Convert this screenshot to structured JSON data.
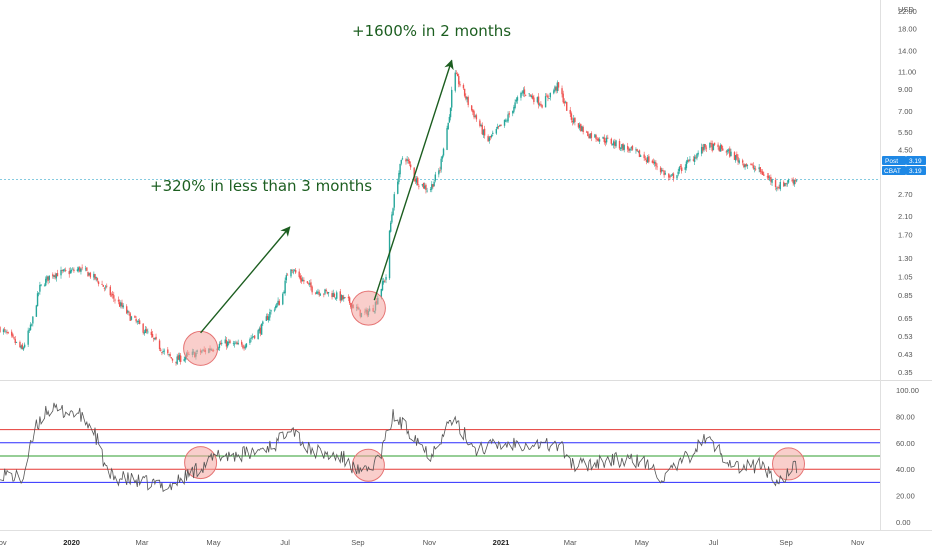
{
  "colors": {
    "up": "#26a69a",
    "down": "#ef5350",
    "annotation": "#1c5e20",
    "price_line": "#5fbbd6",
    "badge": "#1e88e5",
    "rsi_line": "#555555",
    "level_red": "#e53935",
    "level_blue": "#2c2cff",
    "level_green": "#2e9e2e",
    "circle_fill": "#f4a5a0",
    "circle_stroke": "#e57373"
  },
  "chart_data": [
    {
      "type": "candlestick",
      "title": "",
      "currency": "USD",
      "scale": "log",
      "ylim": [
        0.32,
        25
      ],
      "yticks": [
        "22.00",
        "18.00",
        "14.00",
        "11.00",
        "9.00",
        "7.00",
        "5.50",
        "4.50",
        "3.50",
        "2.70",
        "2.10",
        "1.70",
        "1.30",
        "1.05",
        "0.85",
        "0.65",
        "0.53",
        "0.43",
        "0.35"
      ],
      "xticks": [
        "Nov",
        "2020",
        "Mar",
        "May",
        "Jul",
        "Sep",
        "Nov",
        "2021",
        "Mar",
        "May",
        "Jul",
        "Sep",
        "Nov"
      ],
      "x_range": [
        "2019-11-01",
        "2021-11-20"
      ],
      "last_price": {
        "post_label": "Post",
        "post_value": "3.19",
        "ticker": "CBAT",
        "value": "3.19"
      },
      "price_path": [
        [
          "2019-11-01",
          0.58
        ],
        [
          "2019-11-10",
          0.52
        ],
        [
          "2019-11-20",
          0.45
        ],
        [
          "2019-11-28",
          0.6
        ],
        [
          "2019-12-05",
          0.92
        ],
        [
          "2019-12-15",
          1.08
        ],
        [
          "2019-12-28",
          1.1
        ],
        [
          "2020-01-08",
          1.14
        ],
        [
          "2020-01-15",
          1.09
        ],
        [
          "2020-01-25",
          0.98
        ],
        [
          "2020-02-05",
          0.83
        ],
        [
          "2020-02-20",
          0.66
        ],
        [
          "2020-03-05",
          0.55
        ],
        [
          "2020-03-20",
          0.44
        ],
        [
          "2020-03-28",
          0.4
        ],
        [
          "2020-04-08",
          0.42
        ],
        [
          "2020-04-25",
          0.45
        ],
        [
          "2020-05-10",
          0.49
        ],
        [
          "2020-05-25",
          0.47
        ],
        [
          "2020-06-10",
          0.57
        ],
        [
          "2020-06-20",
          0.72
        ],
        [
          "2020-06-28",
          0.8
        ],
        [
          "2020-07-05",
          1.2
        ],
        [
          "2020-07-12",
          1.05
        ],
        [
          "2020-07-25",
          0.9
        ],
        [
          "2020-08-10",
          0.86
        ],
        [
          "2020-08-25",
          0.78
        ],
        [
          "2020-09-05",
          0.67
        ],
        [
          "2020-09-15",
          0.74
        ],
        [
          "2020-09-25",
          1.05
        ],
        [
          "2020-10-02",
          2.6
        ],
        [
          "2020-10-10",
          4.3
        ],
        [
          "2020-10-20",
          3.2
        ],
        [
          "2020-11-01",
          2.8
        ],
        [
          "2020-11-10",
          3.6
        ],
        [
          "2020-11-18",
          6.5
        ],
        [
          "2020-11-22",
          10.8
        ],
        [
          "2020-12-05",
          7.4
        ],
        [
          "2020-12-20",
          4.9
        ],
        [
          "2021-01-05",
          6.2
        ],
        [
          "2021-01-20",
          8.8
        ],
        [
          "2021-02-05",
          7.6
        ],
        [
          "2021-02-18",
          9.3
        ],
        [
          "2021-03-01",
          6.5
        ],
        [
          "2021-03-15",
          5.4
        ],
        [
          "2021-04-01",
          5.0
        ],
        [
          "2021-04-20",
          4.5
        ],
        [
          "2021-05-10",
          3.9
        ],
        [
          "2021-05-25",
          3.2
        ],
        [
          "2021-06-10",
          3.9
        ],
        [
          "2021-06-25",
          4.7
        ],
        [
          "2021-07-10",
          4.5
        ],
        [
          "2021-07-25",
          3.9
        ],
        [
          "2021-08-10",
          3.5
        ],
        [
          "2021-08-25",
          2.95
        ],
        [
          "2021-09-05",
          3.15
        ],
        [
          "2021-09-10",
          3.19
        ]
      ],
      "annotations": [
        {
          "text": "+320% in less than 3 months",
          "from": [
            "2020-04-20",
            0.55
          ],
          "to": [
            "2020-07-05",
            1.85
          ]
        },
        {
          "text": "+1600% in 2 months",
          "from": [
            "2020-09-15",
            0.8
          ],
          "to": [
            "2020-11-20",
            12.5
          ]
        }
      ],
      "highlights": [
        {
          "center": [
            "2020-04-20",
            0.46
          ]
        },
        {
          "center": [
            "2020-09-10",
            0.73
          ]
        }
      ]
    },
    {
      "type": "line",
      "title": "",
      "ylim": [
        -6,
        106
      ],
      "yticks": [
        "100.00",
        "80.00",
        "60.00",
        "40.00",
        "20.00",
        "0.00"
      ],
      "levels": [
        {
          "value": 70,
          "color": "red"
        },
        {
          "value": 60,
          "color": "blue"
        },
        {
          "value": 50,
          "color": "green"
        },
        {
          "value": 40,
          "color": "red"
        },
        {
          "value": 30,
          "color": "blue"
        }
      ],
      "rsi_path": [
        [
          "2019-11-01",
          38
        ],
        [
          "2019-11-20",
          32
        ],
        [
          "2019-12-01",
          70
        ],
        [
          "2019-12-10",
          85
        ],
        [
          "2020-01-05",
          83
        ],
        [
          "2020-01-20",
          70
        ],
        [
          "2020-02-01",
          35
        ],
        [
          "2020-03-01",
          30
        ],
        [
          "2020-03-25",
          27
        ],
        [
          "2020-04-20",
          42
        ],
        [
          "2020-05-05",
          50
        ],
        [
          "2020-06-01",
          52
        ],
        [
          "2020-06-25",
          60
        ],
        [
          "2020-07-05",
          75
        ],
        [
          "2020-07-20",
          55
        ],
        [
          "2020-08-20",
          48
        ],
        [
          "2020-09-05",
          35
        ],
        [
          "2020-09-20",
          50
        ],
        [
          "2020-10-01",
          80
        ],
        [
          "2020-10-20",
          65
        ],
        [
          "2020-11-01",
          50
        ],
        [
          "2020-11-20",
          78
        ],
        [
          "2020-12-10",
          56
        ],
        [
          "2021-01-15",
          60
        ],
        [
          "2021-02-20",
          58
        ],
        [
          "2021-03-05",
          42
        ],
        [
          "2021-04-01",
          47
        ],
        [
          "2021-05-01",
          46
        ],
        [
          "2021-05-20",
          33
        ],
        [
          "2021-06-10",
          50
        ],
        [
          "2021-06-25",
          64
        ],
        [
          "2021-07-10",
          50
        ],
        [
          "2021-07-25",
          40
        ],
        [
          "2021-08-10",
          44
        ],
        [
          "2021-08-25",
          30
        ],
        [
          "2021-09-05",
          40
        ],
        [
          "2021-09-10",
          41
        ]
      ],
      "highlights": [
        {
          "center": [
            "2020-04-20",
            45
          ]
        },
        {
          "center": [
            "2020-09-10",
            43
          ]
        },
        {
          "center": [
            "2021-09-03",
            44
          ]
        }
      ]
    }
  ]
}
